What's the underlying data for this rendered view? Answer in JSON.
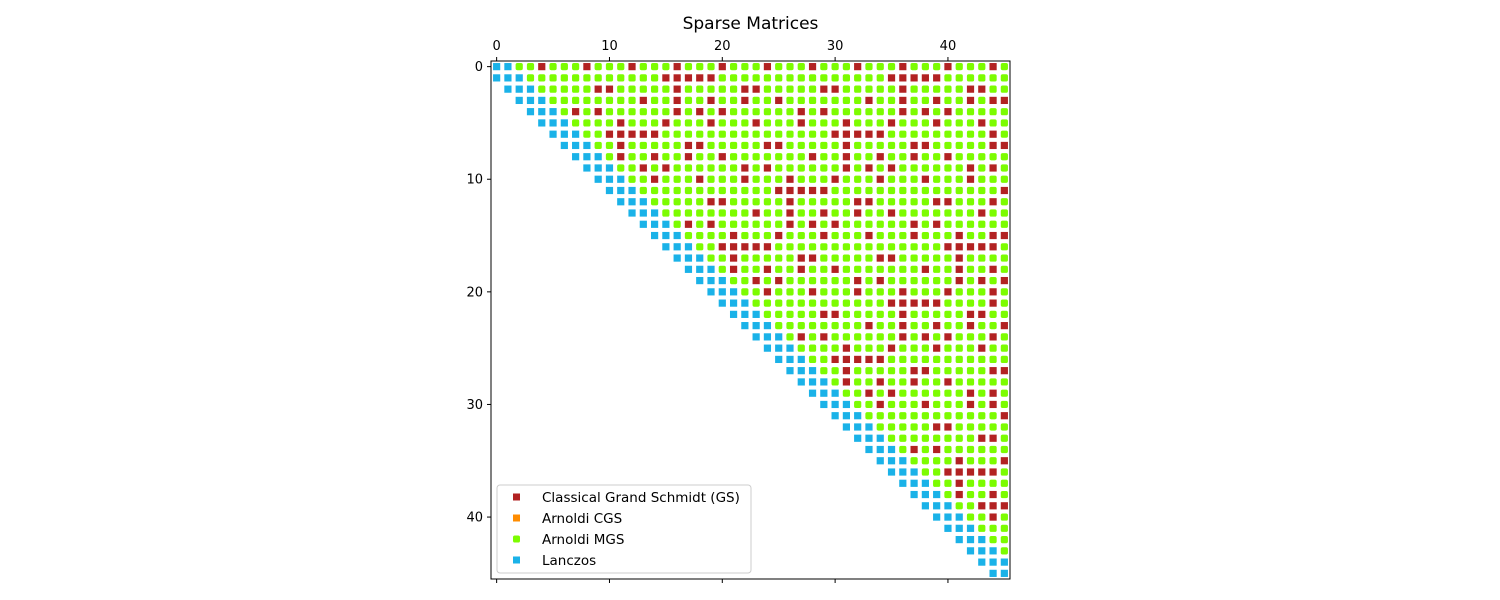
{
  "chart_data": {
    "type": "spy",
    "title": "Sparse Matrices",
    "matrix_size": 46,
    "xlim": [
      -0.5,
      45.5
    ],
    "ylim": [
      45.5,
      -0.5
    ],
    "x_ticks": [
      0,
      10,
      20,
      30,
      40
    ],
    "y_ticks": [
      0,
      10,
      20,
      30,
      40
    ],
    "x_axis_position": "top",
    "legend_location": "lower left",
    "series": [
      {
        "name": "Classical Grand Schmidt (GS)",
        "color": "#b22222",
        "marker": "square",
        "entries": "upper triangle (j >= i + 3) where (i*3 + j*7 + (i*j) % 5) % 4 == 0, plus column 44 for rows where (i % 3 == 0)"
      },
      {
        "name": "Arnoldi CGS",
        "color": "#ff8c00",
        "marker": "square",
        "entries": "hidden beneath other series"
      },
      {
        "name": "Arnoldi MGS",
        "color": "#7cfc00",
        "marker": "square-rounded",
        "entries": "upper Hessenberg beyond tridiagonal band (j >= i + 2) except where Classical GS is shown"
      },
      {
        "name": "Lanczos",
        "color": "#1ab2e8",
        "marker": "square",
        "entries": "tridiagonal band: j == i - 1, i, i + 1"
      }
    ]
  }
}
